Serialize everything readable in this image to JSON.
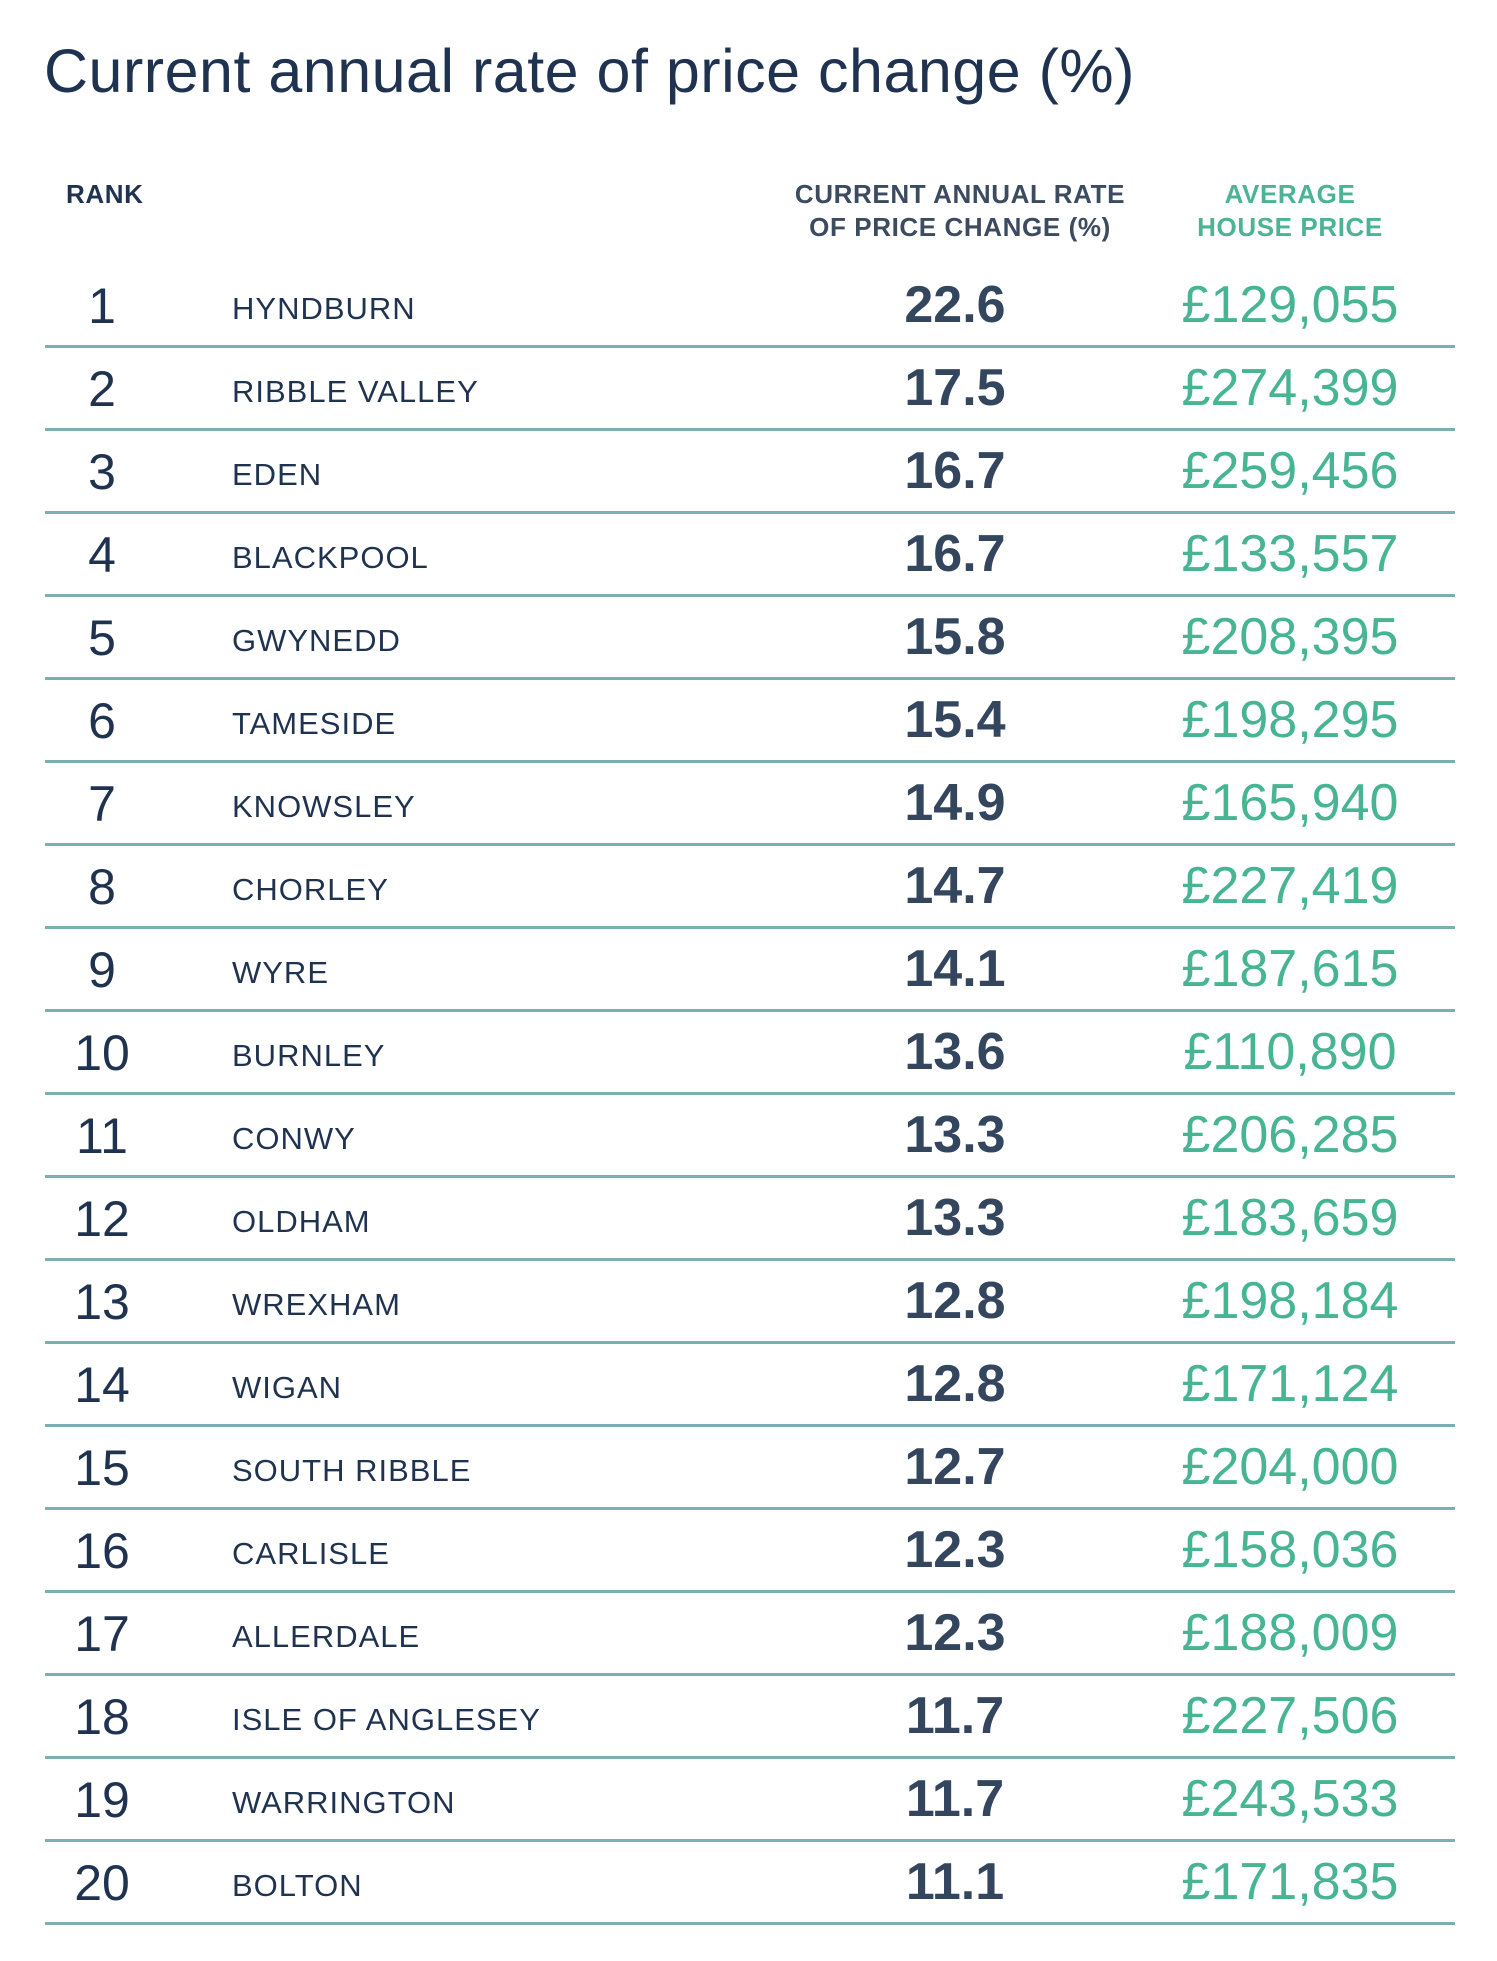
{
  "chart_data": {
    "type": "table",
    "title": "Current annual rate of price change (%)",
    "columns": [
      "RANK",
      "",
      "CURRENT ANNUAL RATE OF PRICE CHANGE (%)",
      "AVERAGE HOUSE PRICE"
    ],
    "header": {
      "rank": "RANK",
      "rate_line1": "CURRENT ANNUAL RATE",
      "rate_line2": "OF PRICE CHANGE (%)",
      "price_line1": "AVERAGE",
      "price_line2": "HOUSE PRICE"
    },
    "rows": [
      {
        "rank": "1",
        "district": "HYNDBURN",
        "rate": "22.6",
        "price": "£129,055"
      },
      {
        "rank": "2",
        "district": "RIBBLE VALLEY",
        "rate": "17.5",
        "price": "£274,399"
      },
      {
        "rank": "3",
        "district": "EDEN",
        "rate": "16.7",
        "price": "£259,456"
      },
      {
        "rank": "4",
        "district": "BLACKPOOL",
        "rate": "16.7",
        "price": "£133,557"
      },
      {
        "rank": "5",
        "district": "GWYNEDD",
        "rate": "15.8",
        "price": "£208,395"
      },
      {
        "rank": "6",
        "district": "TAMESIDE",
        "rate": "15.4",
        "price": "£198,295"
      },
      {
        "rank": "7",
        "district": "KNOWSLEY",
        "rate": "14.9",
        "price": "£165,940"
      },
      {
        "rank": "8",
        "district": "CHORLEY",
        "rate": "14.7",
        "price": "£227,419"
      },
      {
        "rank": "9",
        "district": "WYRE",
        "rate": "14.1",
        "price": "£187,615"
      },
      {
        "rank": "10",
        "district": "BURNLEY",
        "rate": "13.6",
        "price": "£110,890"
      },
      {
        "rank": "11",
        "district": "CONWY",
        "rate": "13.3",
        "price": "£206,285"
      },
      {
        "rank": "12",
        "district": "OLDHAM",
        "rate": "13.3",
        "price": "£183,659"
      },
      {
        "rank": "13",
        "district": "WREXHAM",
        "rate": "12.8",
        "price": "£198,184"
      },
      {
        "rank": "14",
        "district": "WIGAN",
        "rate": "12.8",
        "price": "£171,124"
      },
      {
        "rank": "15",
        "district": "SOUTH RIBBLE",
        "rate": "12.7",
        "price": "£204,000"
      },
      {
        "rank": "16",
        "district": "CARLISLE",
        "rate": "12.3",
        "price": "£158,036"
      },
      {
        "rank": "17",
        "district": "ALLERDALE",
        "rate": "12.3",
        "price": "£188,009"
      },
      {
        "rank": "18",
        "district": "ISLE OF ANGLESEY",
        "rate": "11.7",
        "price": "£227,506"
      },
      {
        "rank": "19",
        "district": "WARRINGTON",
        "rate": "11.7",
        "price": "£243,533"
      },
      {
        "rank": "20",
        "district": "BOLTON",
        "rate": "11.1",
        "price": "£171,835"
      }
    ]
  },
  "colors": {
    "title": "#1f3350",
    "rate_text": "#34465e",
    "price_text": "#48b592",
    "rule": "#7ab0b3"
  }
}
